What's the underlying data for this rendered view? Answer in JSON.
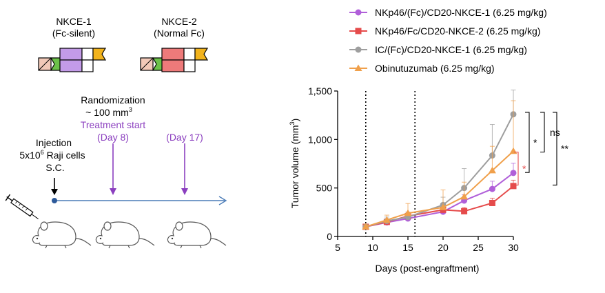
{
  "schematic": {
    "constructs": [
      {
        "name": "NKCE-1",
        "subtitle": "(Fc-silent)",
        "fc_color": "#c39be8"
      },
      {
        "name": "NKCE-2",
        "subtitle": "(Normal Fc)",
        "fc_color": "#ee7a7a"
      }
    ],
    "randomization_label": "Randomization",
    "randomization_volume": "~ 100 mm",
    "randomization_volume_sup": "3",
    "treatment_label": "Treatment start",
    "day8_label": "(Day 8)",
    "day17_label": "(Day 17)",
    "injection_label": "Injection",
    "cells_prefix": "5x10",
    "cells_sup": "6",
    "cells_suffix": " Raji cells",
    "route_label": "S.C.",
    "colors": {
      "treatment": "#8b3fbf",
      "timeline": "#4a7bb7",
      "vl_green": "#6cc24a",
      "vh_yellow": "#f2b31c",
      "vl_pink": "#f2c9b8"
    }
  },
  "chart_data": {
    "type": "line",
    "xlabel": "Days (post-engraftment)",
    "ylabel": "Tumor volume (mm",
    "ylabel_sup": "3",
    "ylabel_close": ")",
    "xlim": [
      5,
      30
    ],
    "ylim": [
      0,
      1500
    ],
    "xticks": [
      5,
      10,
      15,
      20,
      25,
      30
    ],
    "yticks": [
      0,
      500,
      1000,
      1500
    ],
    "ytick_labels": [
      "0",
      "500",
      "1,000",
      "1,500"
    ],
    "dotted_vlines": [
      9,
      16
    ],
    "series": [
      {
        "name": "NKp46/(Fc)/CD20-NKCE-1 (6.25 mg/kg)",
        "color": "#b05fd9",
        "marker": "circle",
        "x": [
          9,
          12,
          15,
          20,
          23,
          27,
          30
        ],
        "y": [
          100,
          145,
          185,
          255,
          370,
          490,
          655
        ],
        "err": [
          20,
          30,
          40,
          50,
          60,
          80,
          100
        ]
      },
      {
        "name": "NKp46/Fc/CD20-NKCE-2 (6.25 mg/kg)",
        "color": "#e54b4b",
        "marker": "square",
        "x": [
          9,
          12,
          15,
          20,
          23,
          27,
          30
        ],
        "y": [
          100,
          150,
          210,
          275,
          260,
          345,
          520
        ],
        "err": [
          20,
          30,
          40,
          40,
          40,
          50,
          60
        ]
      },
      {
        "name": "IC/(Fc)/CD20-NKCE-1 (6.25 mg/kg)",
        "color": "#9e9e9e",
        "marker": "circle",
        "x": [
          9,
          12,
          15,
          20,
          23,
          27,
          30
        ],
        "y": [
          100,
          160,
          200,
          325,
          500,
          835,
          1260
        ],
        "err": [
          20,
          40,
          50,
          80,
          200,
          320,
          250
        ]
      },
      {
        "name": "Obinutuzumab (6.25 mg/kg)",
        "color": "#f0a04b",
        "marker": "triangle",
        "x": [
          9,
          12,
          15,
          20,
          23,
          27,
          30
        ],
        "y": [
          100,
          170,
          240,
          300,
          410,
          680,
          880
        ],
        "err": [
          20,
          50,
          100,
          180,
          150,
          250,
          520
        ]
      }
    ],
    "significance": [
      {
        "label": "ns",
        "y_top": 1280,
        "y_bottom": 870,
        "color": "#000000",
        "level": 2
      },
      {
        "label": "*",
        "y_top": 1280,
        "y_bottom": 660,
        "color": "#000000",
        "level": 1
      },
      {
        "label": "**",
        "y_top": 1280,
        "y_bottom": 530,
        "color": "#000000",
        "level": 3
      },
      {
        "label": "*",
        "y_top": 870,
        "y_bottom": 530,
        "color": "#e54b4b",
        "level": 0
      }
    ]
  }
}
